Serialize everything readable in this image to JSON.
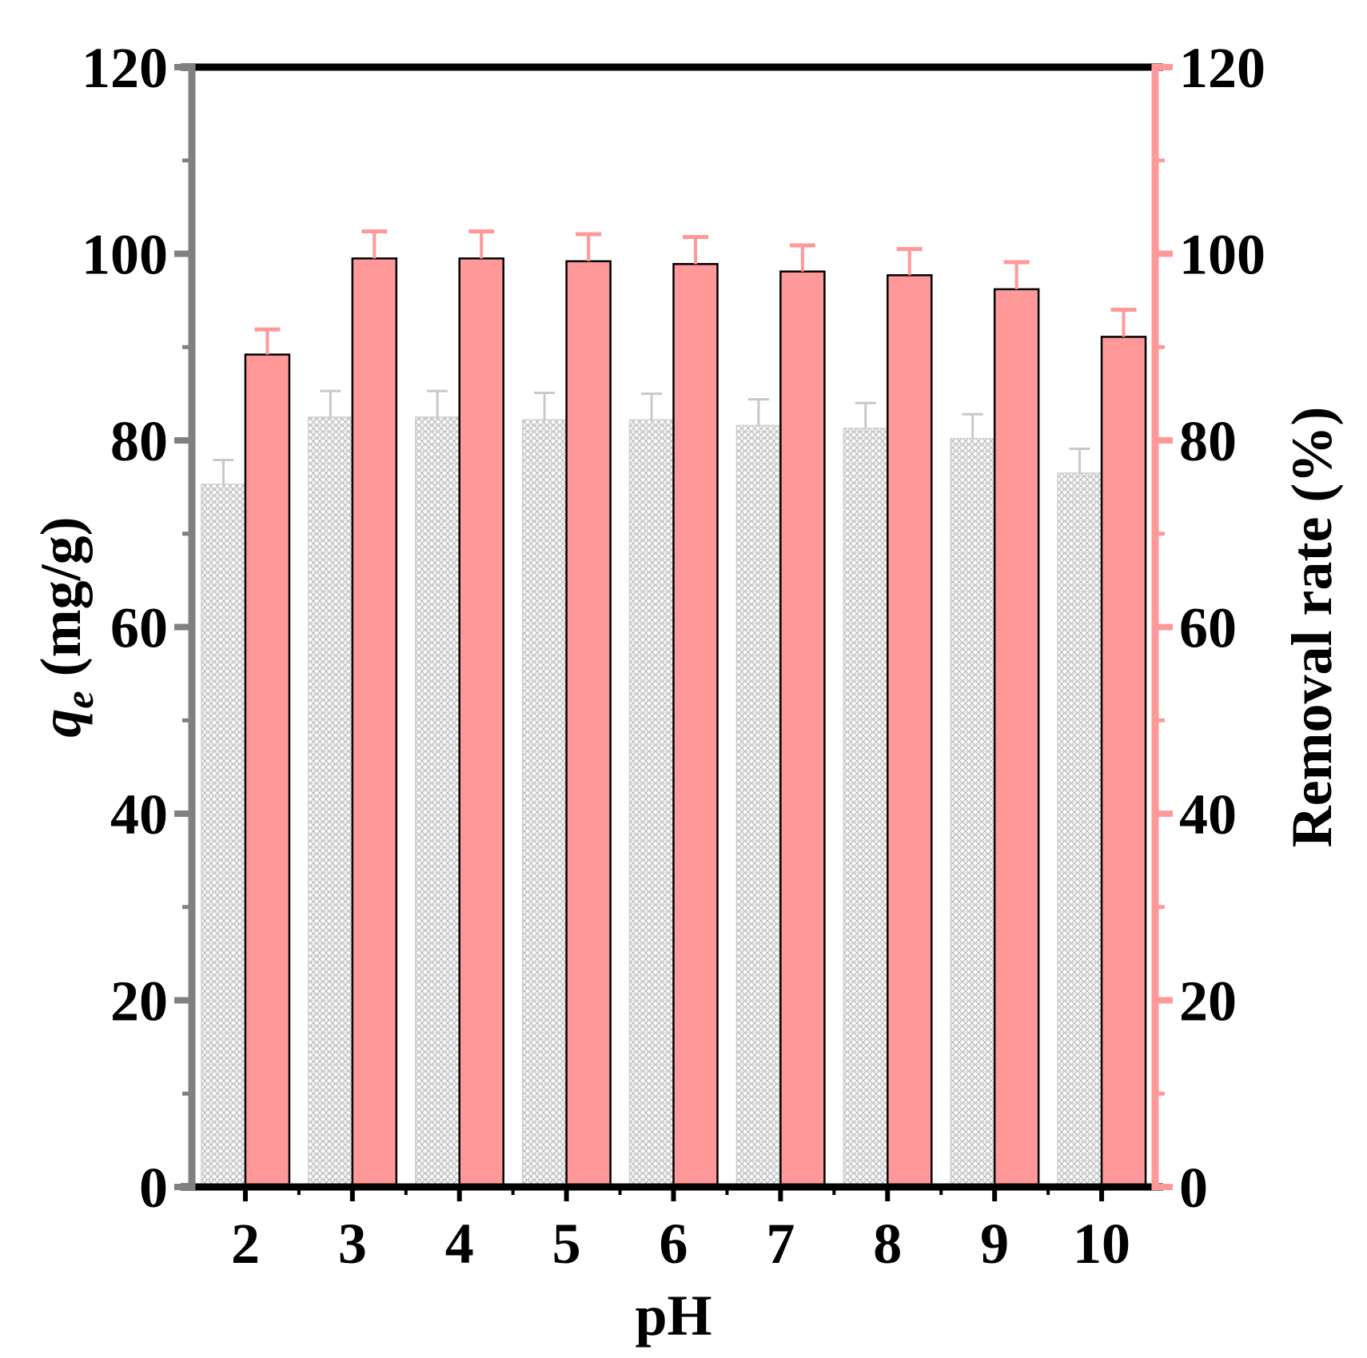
{
  "chart_data": {
    "type": "bar",
    "title": "",
    "xlabel": "pH",
    "ylabel": {
      "symbol": "q",
      "subscript": "e",
      "unit": " (mg/g)"
    },
    "y2label": "Removal rate (%)",
    "categories": [
      "2",
      "3",
      "4",
      "5",
      "6",
      "7",
      "8",
      "9",
      "10"
    ],
    "ylim": [
      0,
      120
    ],
    "y2lim": [
      0,
      120
    ],
    "yticks": [
      "0",
      "20",
      "40",
      "60",
      "80",
      "100",
      "120"
    ],
    "y2ticks": [
      "0",
      "20",
      "40",
      "60",
      "80",
      "100",
      "120"
    ],
    "series": [
      {
        "axis": "left",
        "values": [
          75.3,
          82.5,
          82.5,
          82.2,
          82.2,
          81.6,
          81.3,
          80.2,
          76.5
        ],
        "errors": [
          2.6,
          2.8,
          2.8,
          2.9,
          2.8,
          2.8,
          2.7,
          2.6,
          2.6
        ],
        "color": "#d9d9d9",
        "pattern": "crosshatch"
      },
      {
        "axis": "right",
        "values": [
          89.2,
          99.5,
          99.5,
          99.2,
          98.9,
          98.1,
          97.7,
          96.2,
          91.1
        ],
        "errors": [
          2.7,
          2.9,
          2.9,
          2.9,
          2.9,
          2.8,
          2.8,
          2.9,
          2.9
        ],
        "color": "#ff9999"
      }
    ],
    "colors": {
      "left_axis": "#808080",
      "right_axis": "#ff9999",
      "frame": "#000000"
    },
    "grid": false,
    "legend": "none"
  }
}
